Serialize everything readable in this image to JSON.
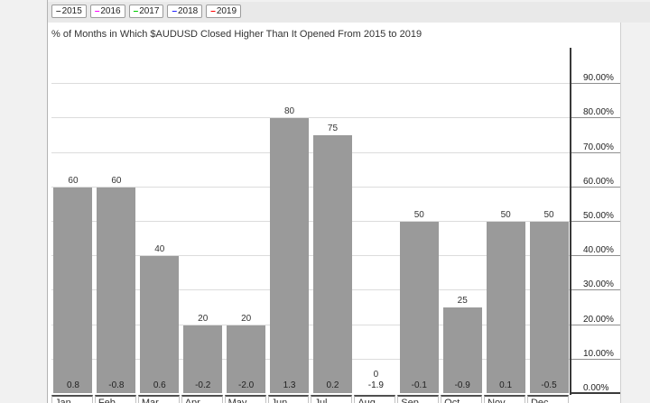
{
  "title": "% of Months in Which $AUDUSD Closed Higher Than It Opened From 2015 to 2019",
  "legend": {
    "items": [
      {
        "label": "2015",
        "color": "#444444"
      },
      {
        "label": "2016",
        "color": "#ff00ff"
      },
      {
        "label": "2017",
        "color": "#00cc00"
      },
      {
        "label": "2018",
        "color": "#2222ff"
      },
      {
        "label": "2019",
        "color": "#ff0000"
      }
    ]
  },
  "chart_data": {
    "type": "bar",
    "title": "% of Months in Which $AUDUSD Closed Higher Than It Opened From 2015 to 2019",
    "categories": [
      "Jan",
      "Feb",
      "Mar",
      "Apr",
      "May",
      "Jun",
      "Jul",
      "Aug",
      "Sep",
      "Oct",
      "Nov",
      "Dec"
    ],
    "values": [
      60,
      60,
      40,
      20,
      20,
      80,
      75,
      0,
      50,
      25,
      50,
      50
    ],
    "bottom_values": [
      "0.8",
      "-0.8",
      "0.6",
      "-0.2",
      "-2.0",
      "1.3",
      "0.2",
      "-1.9",
      "-0.1",
      "-0.9",
      "0.1",
      "-0.5"
    ],
    "xlabel": "",
    "ylabel": "",
    "ylim": [
      0,
      100
    ],
    "ytick_labels": [
      "0.00%",
      "10.00%",
      "20.00%",
      "30.00%",
      "40.00%",
      "50.00%",
      "60.00%",
      "70.00%",
      "80.00%",
      "90.00%"
    ],
    "bar_color": "#9a9a9a",
    "grid": true,
    "legend_position": "top",
    "axis_side": "right"
  }
}
